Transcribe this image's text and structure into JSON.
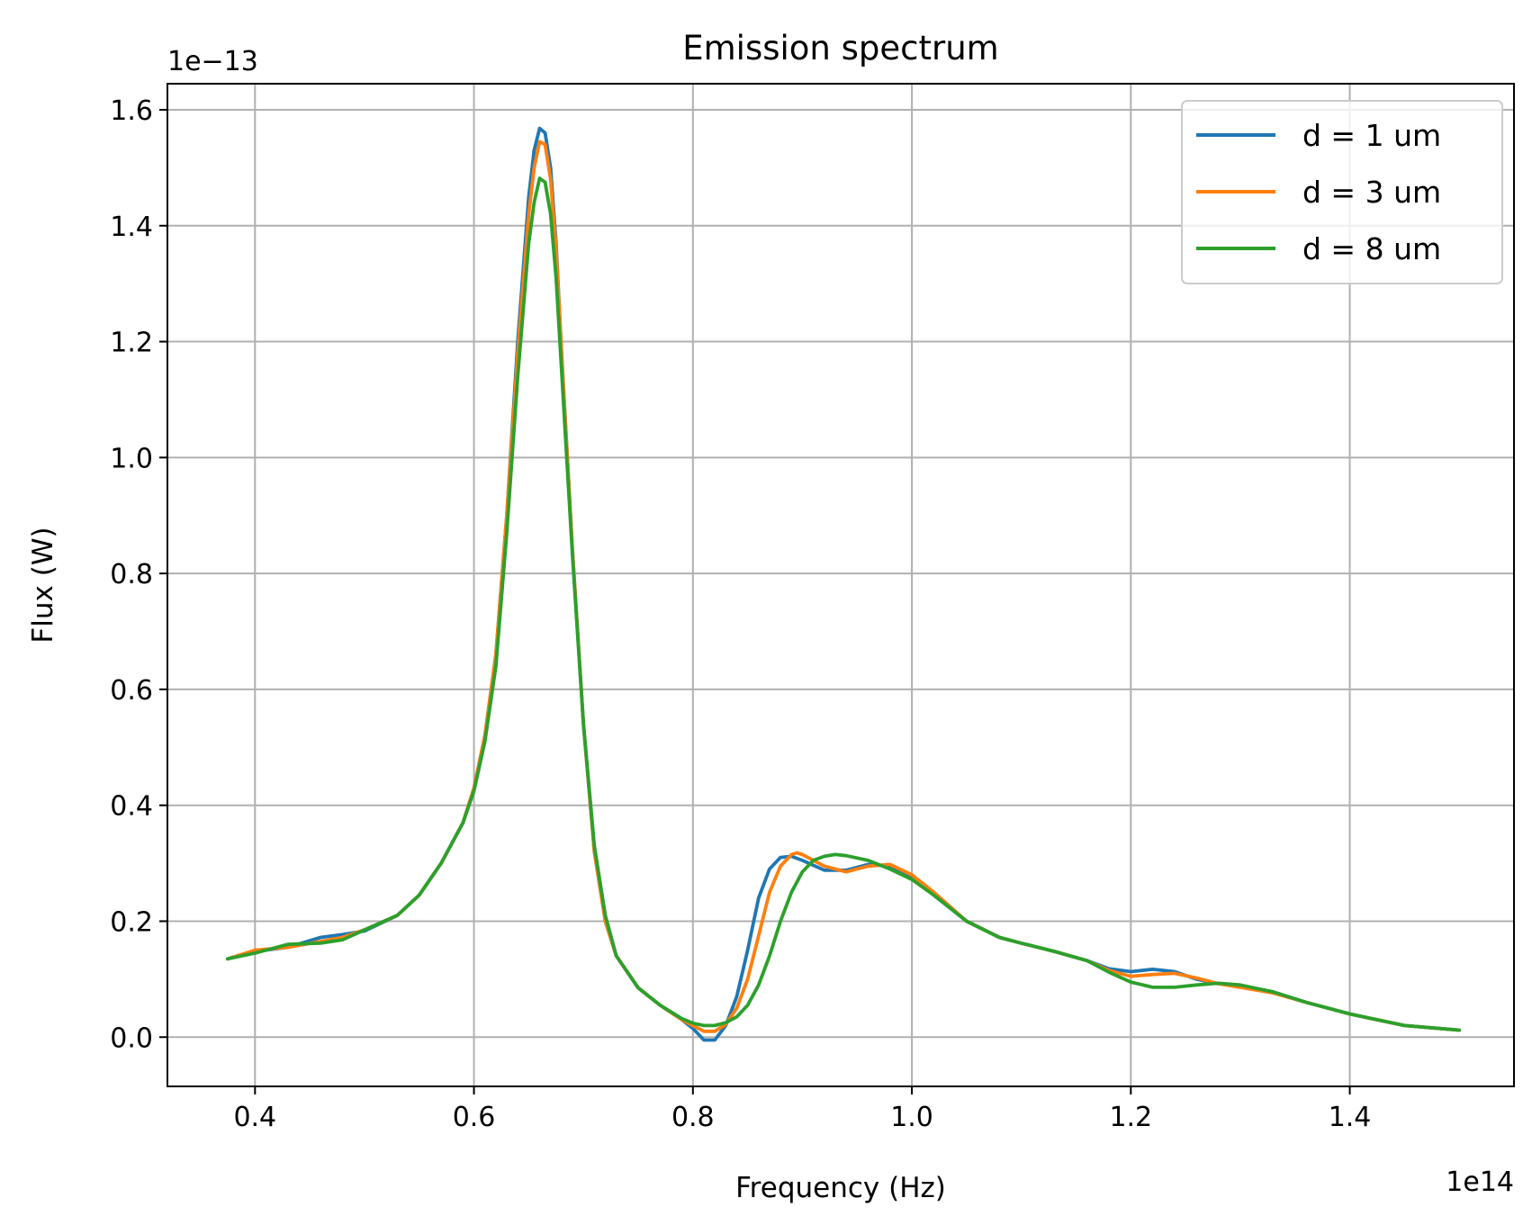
{
  "chart_data": {
    "type": "line",
    "title": "Emission spectrum",
    "xlabel": "Frequency (Hz)",
    "ylabel": "Flux (W)",
    "x_offset_label": "1e14",
    "y_offset_label": "1e−13",
    "xlim": [
      0.32,
      1.55
    ],
    "ylim": [
      -0.085,
      1.645
    ],
    "x_ticks": [
      0.4,
      0.6,
      0.8,
      1.0,
      1.2,
      1.4
    ],
    "x_tick_labels": [
      "0.4",
      "0.6",
      "0.8",
      "1.0",
      "1.2",
      "1.4"
    ],
    "y_ticks": [
      0.0,
      0.2,
      0.4,
      0.6,
      0.8,
      1.0,
      1.2,
      1.4,
      1.6
    ],
    "y_tick_labels": [
      "0.0",
      "0.2",
      "0.4",
      "0.6",
      "0.8",
      "1.0",
      "1.2",
      "1.4",
      "1.6"
    ],
    "grid": true,
    "legend_position": "top-right",
    "series": [
      {
        "name": "d = 1 um",
        "color": "#1f77b4",
        "points": [
          [
            0.375,
            0.135
          ],
          [
            0.4,
            0.148
          ],
          [
            0.43,
            0.155
          ],
          [
            0.46,
            0.172
          ],
          [
            0.48,
            0.177
          ],
          [
            0.5,
            0.183
          ],
          [
            0.53,
            0.21
          ],
          [
            0.55,
            0.245
          ],
          [
            0.57,
            0.3
          ],
          [
            0.59,
            0.37
          ],
          [
            0.6,
            0.43
          ],
          [
            0.61,
            0.52
          ],
          [
            0.62,
            0.66
          ],
          [
            0.63,
            0.9
          ],
          [
            0.64,
            1.2
          ],
          [
            0.65,
            1.45
          ],
          [
            0.655,
            1.53
          ],
          [
            0.66,
            1.568
          ],
          [
            0.665,
            1.56
          ],
          [
            0.67,
            1.5
          ],
          [
            0.675,
            1.37
          ],
          [
            0.68,
            1.18
          ],
          [
            0.69,
            0.84
          ],
          [
            0.7,
            0.54
          ],
          [
            0.71,
            0.32
          ],
          [
            0.72,
            0.2
          ],
          [
            0.73,
            0.14
          ],
          [
            0.75,
            0.085
          ],
          [
            0.77,
            0.055
          ],
          [
            0.79,
            0.03
          ],
          [
            0.8,
            0.015
          ],
          [
            0.81,
            -0.005
          ],
          [
            0.82,
            -0.005
          ],
          [
            0.83,
            0.02
          ],
          [
            0.84,
            0.07
          ],
          [
            0.85,
            0.15
          ],
          [
            0.86,
            0.24
          ],
          [
            0.87,
            0.29
          ],
          [
            0.88,
            0.31
          ],
          [
            0.89,
            0.312
          ],
          [
            0.9,
            0.305
          ],
          [
            0.92,
            0.288
          ],
          [
            0.94,
            0.288
          ],
          [
            0.96,
            0.298
          ],
          [
            0.98,
            0.295
          ],
          [
            1.0,
            0.275
          ],
          [
            1.02,
            0.245
          ],
          [
            1.05,
            0.2
          ],
          [
            1.08,
            0.172
          ],
          [
            1.1,
            0.162
          ],
          [
            1.13,
            0.148
          ],
          [
            1.16,
            0.132
          ],
          [
            1.18,
            0.118
          ],
          [
            1.2,
            0.113
          ],
          [
            1.22,
            0.117
          ],
          [
            1.24,
            0.113
          ],
          [
            1.26,
            0.1
          ],
          [
            1.28,
            0.092
          ],
          [
            1.3,
            0.088
          ],
          [
            1.33,
            0.078
          ],
          [
            1.36,
            0.06
          ],
          [
            1.4,
            0.04
          ],
          [
            1.45,
            0.02
          ],
          [
            1.5,
            0.012
          ]
        ]
      },
      {
        "name": "d = 3 um",
        "color": "#ff7f0e",
        "points": [
          [
            0.375,
            0.135
          ],
          [
            0.4,
            0.15
          ],
          [
            0.43,
            0.155
          ],
          [
            0.46,
            0.165
          ],
          [
            0.48,
            0.172
          ],
          [
            0.5,
            0.185
          ],
          [
            0.53,
            0.21
          ],
          [
            0.55,
            0.245
          ],
          [
            0.57,
            0.3
          ],
          [
            0.59,
            0.37
          ],
          [
            0.6,
            0.43
          ],
          [
            0.61,
            0.52
          ],
          [
            0.62,
            0.66
          ],
          [
            0.63,
            0.9
          ],
          [
            0.64,
            1.18
          ],
          [
            0.65,
            1.42
          ],
          [
            0.655,
            1.5
          ],
          [
            0.66,
            1.545
          ],
          [
            0.665,
            1.54
          ],
          [
            0.67,
            1.48
          ],
          [
            0.675,
            1.36
          ],
          [
            0.68,
            1.18
          ],
          [
            0.69,
            0.84
          ],
          [
            0.7,
            0.54
          ],
          [
            0.71,
            0.32
          ],
          [
            0.72,
            0.2
          ],
          [
            0.73,
            0.14
          ],
          [
            0.75,
            0.085
          ],
          [
            0.77,
            0.055
          ],
          [
            0.79,
            0.03
          ],
          [
            0.8,
            0.02
          ],
          [
            0.81,
            0.01
          ],
          [
            0.82,
            0.01
          ],
          [
            0.83,
            0.022
          ],
          [
            0.84,
            0.05
          ],
          [
            0.85,
            0.1
          ],
          [
            0.86,
            0.175
          ],
          [
            0.87,
            0.25
          ],
          [
            0.88,
            0.295
          ],
          [
            0.89,
            0.315
          ],
          [
            0.895,
            0.318
          ],
          [
            0.9,
            0.315
          ],
          [
            0.92,
            0.295
          ],
          [
            0.94,
            0.285
          ],
          [
            0.96,
            0.295
          ],
          [
            0.98,
            0.298
          ],
          [
            1.0,
            0.28
          ],
          [
            1.02,
            0.25
          ],
          [
            1.05,
            0.2
          ],
          [
            1.08,
            0.172
          ],
          [
            1.1,
            0.162
          ],
          [
            1.13,
            0.148
          ],
          [
            1.16,
            0.132
          ],
          [
            1.18,
            0.115
          ],
          [
            1.2,
            0.105
          ],
          [
            1.22,
            0.108
          ],
          [
            1.24,
            0.11
          ],
          [
            1.26,
            0.102
          ],
          [
            1.28,
            0.092
          ],
          [
            1.3,
            0.086
          ],
          [
            1.33,
            0.076
          ],
          [
            1.36,
            0.06
          ],
          [
            1.4,
            0.04
          ],
          [
            1.45,
            0.02
          ],
          [
            1.5,
            0.012
          ]
        ]
      },
      {
        "name": "d = 8 um",
        "color": "#2ca02c",
        "points": [
          [
            0.375,
            0.135
          ],
          [
            0.4,
            0.145
          ],
          [
            0.43,
            0.16
          ],
          [
            0.46,
            0.162
          ],
          [
            0.48,
            0.168
          ],
          [
            0.5,
            0.185
          ],
          [
            0.53,
            0.21
          ],
          [
            0.55,
            0.245
          ],
          [
            0.57,
            0.3
          ],
          [
            0.59,
            0.37
          ],
          [
            0.6,
            0.425
          ],
          [
            0.61,
            0.51
          ],
          [
            0.62,
            0.64
          ],
          [
            0.63,
            0.87
          ],
          [
            0.64,
            1.14
          ],
          [
            0.65,
            1.37
          ],
          [
            0.655,
            1.44
          ],
          [
            0.66,
            1.482
          ],
          [
            0.665,
            1.475
          ],
          [
            0.67,
            1.42
          ],
          [
            0.675,
            1.31
          ],
          [
            0.68,
            1.15
          ],
          [
            0.69,
            0.83
          ],
          [
            0.7,
            0.54
          ],
          [
            0.71,
            0.33
          ],
          [
            0.72,
            0.21
          ],
          [
            0.73,
            0.14
          ],
          [
            0.75,
            0.085
          ],
          [
            0.77,
            0.055
          ],
          [
            0.79,
            0.032
          ],
          [
            0.8,
            0.024
          ],
          [
            0.81,
            0.02
          ],
          [
            0.82,
            0.02
          ],
          [
            0.83,
            0.025
          ],
          [
            0.84,
            0.035
          ],
          [
            0.85,
            0.055
          ],
          [
            0.86,
            0.09
          ],
          [
            0.87,
            0.14
          ],
          [
            0.88,
            0.2
          ],
          [
            0.89,
            0.25
          ],
          [
            0.9,
            0.285
          ],
          [
            0.91,
            0.305
          ],
          [
            0.92,
            0.312
          ],
          [
            0.93,
            0.315
          ],
          [
            0.94,
            0.313
          ],
          [
            0.96,
            0.305
          ],
          [
            0.98,
            0.29
          ],
          [
            1.0,
            0.272
          ],
          [
            1.02,
            0.245
          ],
          [
            1.05,
            0.2
          ],
          [
            1.08,
            0.172
          ],
          [
            1.1,
            0.162
          ],
          [
            1.13,
            0.148
          ],
          [
            1.16,
            0.132
          ],
          [
            1.18,
            0.112
          ],
          [
            1.2,
            0.095
          ],
          [
            1.22,
            0.086
          ],
          [
            1.24,
            0.086
          ],
          [
            1.26,
            0.09
          ],
          [
            1.28,
            0.093
          ],
          [
            1.3,
            0.09
          ],
          [
            1.33,
            0.078
          ],
          [
            1.36,
            0.06
          ],
          [
            1.4,
            0.04
          ],
          [
            1.45,
            0.02
          ],
          [
            1.5,
            0.012
          ]
        ]
      }
    ]
  }
}
